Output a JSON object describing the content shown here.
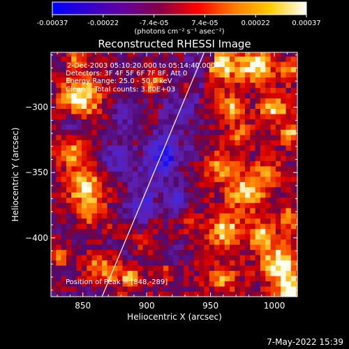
{
  "colorbar": {
    "tick_labels": [
      "-0.00037",
      "-0.00022",
      "-7.4e-05",
      "7.4e-05",
      "0.00022",
      "0.00037"
    ],
    "unit_label": "(photons cm⁻² s⁻¹ asec⁻²)",
    "range": [
      -0.00037,
      0.00037
    ],
    "colors": [
      "#0000ff",
      "#3300cc",
      "#660099",
      "#880044",
      "#ff0000",
      "#ff7a00",
      "#ffcc00",
      "#ffffff"
    ]
  },
  "chart_data": {
    "type": "heatmap",
    "title": "Reconstructed RHESSI Image",
    "xlabel": "Heliocentric X (arcsec)",
    "ylabel": "Heliocentric Y (arcsec)",
    "xlim": [
      825,
      1018
    ],
    "ylim": [
      -445,
      -258
    ],
    "x_ticks": [
      850,
      900,
      950,
      1000
    ],
    "y_ticks": [
      -300,
      -350,
      -400
    ],
    "annotations": [
      "2-Dec-2003 05:10:20.000 to 05:14:40.000",
      "Detectors: 3F 4F 5F 6F 7F 8F, Att 0",
      "Energy Range: 25.0 - 50.0 keV",
      "Clean    Total counts: 3.80E+03"
    ],
    "peak_label": "Position of Peak = [848,-289]",
    "peak": [
      848,
      -289
    ],
    "limb_line": [
      [
        865,
        -445
      ],
      [
        945,
        -258
      ]
    ],
    "hotspots": [
      {
        "x": 848,
        "y": -292,
        "r": 16,
        "v": 1.0
      },
      {
        "x": 846,
        "y": -262,
        "r": 8,
        "v": 0.6
      },
      {
        "x": 843,
        "y": -330,
        "r": 14,
        "v": 0.7
      },
      {
        "x": 852,
        "y": -360,
        "r": 16,
        "v": 0.8
      },
      {
        "x": 856,
        "y": -380,
        "r": 10,
        "v": 0.6
      },
      {
        "x": 868,
        "y": -425,
        "r": 14,
        "v": 0.95
      },
      {
        "x": 833,
        "y": -415,
        "r": 8,
        "v": 0.55
      },
      {
        "x": 888,
        "y": -430,
        "r": 7,
        "v": 0.45
      },
      {
        "x": 905,
        "y": -280,
        "r": 8,
        "v": 0.55
      },
      {
        "x": 930,
        "y": -285,
        "r": 7,
        "v": 0.5
      },
      {
        "x": 958,
        "y": -268,
        "r": 12,
        "v": 0.75
      },
      {
        "x": 985,
        "y": -268,
        "r": 13,
        "v": 0.85
      },
      {
        "x": 1012,
        "y": -272,
        "r": 8,
        "v": 0.6
      },
      {
        "x": 965,
        "y": -300,
        "r": 10,
        "v": 0.6
      },
      {
        "x": 1000,
        "y": -300,
        "r": 10,
        "v": 0.75
      },
      {
        "x": 1013,
        "y": -320,
        "r": 8,
        "v": 0.6
      },
      {
        "x": 975,
        "y": -320,
        "r": 8,
        "v": 0.5
      },
      {
        "x": 958,
        "y": -345,
        "r": 11,
        "v": 0.65
      },
      {
        "x": 995,
        "y": -350,
        "r": 9,
        "v": 0.55
      },
      {
        "x": 978,
        "y": -365,
        "r": 14,
        "v": 0.75
      },
      {
        "x": 1012,
        "y": -385,
        "r": 8,
        "v": 0.6
      },
      {
        "x": 962,
        "y": -395,
        "r": 12,
        "v": 0.75
      },
      {
        "x": 990,
        "y": -398,
        "r": 10,
        "v": 0.7
      },
      {
        "x": 1005,
        "y": -420,
        "r": 14,
        "v": 0.9
      },
      {
        "x": 1012,
        "y": -440,
        "r": 10,
        "v": 0.95
      },
      {
        "x": 960,
        "y": -430,
        "r": 10,
        "v": 0.55
      },
      {
        "x": 915,
        "y": -425,
        "r": 6,
        "v": 0.35
      },
      {
        "x": 935,
        "y": -388,
        "r": 6,
        "v": 0.35
      },
      {
        "x": 878,
        "y": -395,
        "r": 9,
        "v": 0.5
      },
      {
        "x": 890,
        "y": -400,
        "r": 7,
        "v": 0.45
      }
    ],
    "coldspots": [
      {
        "x": 843,
        "y": -315,
        "r": 10,
        "v": -0.7
      },
      {
        "x": 875,
        "y": -340,
        "r": 13,
        "v": -0.5
      },
      {
        "x": 922,
        "y": -370,
        "r": 12,
        "v": -0.65
      },
      {
        "x": 915,
        "y": -340,
        "r": 14,
        "v": -0.5
      },
      {
        "x": 885,
        "y": -305,
        "r": 12,
        "v": -0.4
      },
      {
        "x": 935,
        "y": -330,
        "r": 10,
        "v": -0.35
      },
      {
        "x": 900,
        "y": -378,
        "r": 9,
        "v": -0.4
      },
      {
        "x": 938,
        "y": -305,
        "r": 8,
        "v": -0.3
      },
      {
        "x": 922,
        "y": -410,
        "r": 9,
        "v": -0.4
      }
    ]
  },
  "timestamp": "7-May-2022 15:39"
}
